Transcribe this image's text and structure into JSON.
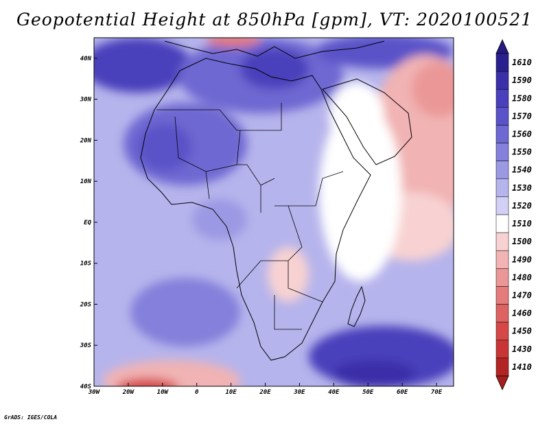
{
  "title": "Geopotential Height at 850hPa [gpm], VT: 2020100521",
  "credit": "GrADS: IGES/COLA",
  "map": {
    "projection": "lat-lon",
    "lon_range": [
      -30,
      75
    ],
    "lat_range": [
      -40,
      45
    ],
    "lon_ticks": [
      {
        "value": -30,
        "label": "30W"
      },
      {
        "value": -20,
        "label": "20W"
      },
      {
        "value": -10,
        "label": "10W"
      },
      {
        "value": 0,
        "label": "0"
      },
      {
        "value": 10,
        "label": "10E"
      },
      {
        "value": 20,
        "label": "20E"
      },
      {
        "value": 30,
        "label": "30E"
      },
      {
        "value": 40,
        "label": "40E"
      },
      {
        "value": 50,
        "label": "50E"
      },
      {
        "value": 60,
        "label": "60E"
      },
      {
        "value": 70,
        "label": "70E"
      }
    ],
    "lat_ticks": [
      {
        "value": 40,
        "label": "40N"
      },
      {
        "value": 30,
        "label": "30N"
      },
      {
        "value": 20,
        "label": "20N"
      },
      {
        "value": 10,
        "label": "10N"
      },
      {
        "value": 0,
        "label": "EQ"
      },
      {
        "value": -10,
        "label": "10S"
      },
      {
        "value": -20,
        "label": "20S"
      },
      {
        "value": -30,
        "label": "30S"
      },
      {
        "value": -40,
        "label": "40S"
      }
    ]
  },
  "legend": {
    "levels": [
      {
        "label": "1610",
        "color": "#2a1f8f"
      },
      {
        "label": "1590",
        "color": "#3a2fa8"
      },
      {
        "label": "1580",
        "color": "#4a40bb"
      },
      {
        "label": "1570",
        "color": "#5a52c8"
      },
      {
        "label": "1560",
        "color": "#6e68d2"
      },
      {
        "label": "1550",
        "color": "#8480db"
      },
      {
        "label": "1540",
        "color": "#9c99e4"
      },
      {
        "label": "1530",
        "color": "#b6b4ec"
      },
      {
        "label": "1520",
        "color": "#d2d1f5"
      },
      {
        "label": "1510",
        "color": "#ffffff"
      },
      {
        "label": "1500",
        "color": "#f8d2d2"
      },
      {
        "label": "1490",
        "color": "#f1b3b3"
      },
      {
        "label": "1480",
        "color": "#eb9797"
      },
      {
        "label": "1470",
        "color": "#e47c7c"
      },
      {
        "label": "1460",
        "color": "#dd6262"
      },
      {
        "label": "1450",
        "color": "#d64848"
      },
      {
        "label": "1430",
        "color": "#c93434"
      },
      {
        "label": "1410",
        "color": "#b32424"
      }
    ],
    "top_arrow_color": "#241a80",
    "bottom_arrow_color": "#a61e1e"
  },
  "colors": {
    "background": "#ffffff",
    "coastline": "#000000"
  }
}
